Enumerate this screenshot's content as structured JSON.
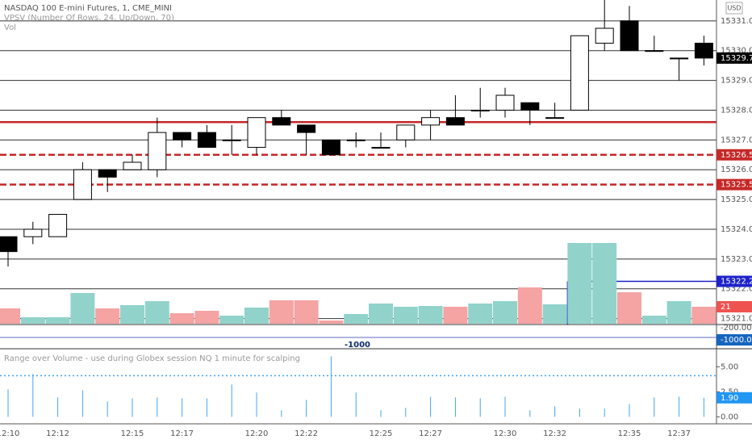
{
  "header": {
    "symbol": "NASDAQ 100 E-mini Futures, 1, CME_MINI",
    "indicator": "VPSV (Number Of Rows, 24, Up/Down, 70)",
    "currency": "USD"
  },
  "bottom_scale": {
    "labels": [
      "-200.00",
      "-1000.00"
    ],
    "marker": "-1000"
  },
  "chart_data": [
    {
      "type": "candlestick",
      "categories": [
        "12:10",
        null,
        "12:12",
        null,
        null,
        "12:15",
        null,
        "12:17",
        null,
        null,
        "12:20",
        null,
        "12:22",
        null,
        null,
        "12:25",
        null,
        "12:27",
        null,
        null,
        "12:30",
        null,
        "12:32",
        null,
        null,
        "12:35",
        null,
        "12:37",
        null
      ],
      "open": [
        15323.75,
        15323.75,
        15323.75,
        15325.0,
        15326.0,
        15326.0,
        15326.0,
        15327.25,
        15327.25,
        15327.0,
        15326.75,
        15327.75,
        15327.5,
        15327.0,
        15327.0,
        15326.75,
        15327.0,
        15327.5,
        15327.75,
        15328.0,
        15328.0,
        15328.25,
        15327.75,
        15328.0,
        15330.25,
        15331.0,
        15330.0,
        15329.75,
        15330.25
      ],
      "high": [
        15323.75,
        15324.25,
        15324.5,
        15326.25,
        15326.0,
        15326.5,
        15327.75,
        15327.25,
        15327.5,
        15327.5,
        15327.75,
        15328.0,
        15327.5,
        15327.0,
        15327.25,
        15327.25,
        15327.5,
        15328.0,
        15328.5,
        15328.75,
        15328.75,
        15328.25,
        15328.25,
        15330.5,
        15331.75,
        15331.5,
        15330.5,
        15329.75,
        15330.5
      ],
      "low": [
        15322.75,
        15323.5,
        15323.75,
        15325.0,
        15325.25,
        15326.0,
        15325.75,
        15326.75,
        15326.75,
        15326.5,
        15326.5,
        15327.5,
        15326.5,
        15326.5,
        15326.75,
        15326.75,
        15326.75,
        15327.0,
        15327.5,
        15327.75,
        15327.75,
        15327.5,
        15327.75,
        15328.0,
        15330.0,
        15330.0,
        15330.0,
        15329.0,
        15329.5
      ],
      "close": [
        15323.25,
        15324.0,
        15324.5,
        15326.0,
        15325.75,
        15326.25,
        15327.25,
        15327.0,
        15326.75,
        15327.0,
        15327.75,
        15327.5,
        15327.25,
        15326.5,
        15327.0,
        15326.75,
        15327.5,
        15327.75,
        15327.5,
        15328.0,
        15328.5,
        15328.0,
        15327.75,
        15330.5,
        15330.75,
        15330.0,
        15330.0,
        15329.75,
        15329.75
      ],
      "last_label": "15329.75",
      "ylim": [
        15320.8,
        15331.7
      ],
      "yticks": [
        {
          "value": 15321,
          "label": "15321.00"
        },
        {
          "value": 15322,
          "label": "15322.00"
        },
        {
          "value": 15323,
          "label": "15323.00"
        },
        {
          "value": 15324,
          "label": "15324.00"
        },
        {
          "value": 15325,
          "label": "15325.00"
        },
        {
          "value": 15326,
          "label": "15326.00"
        },
        {
          "value": 15327,
          "label": "15327.00"
        },
        {
          "value": 15328,
          "label": "15328.00"
        },
        {
          "value": 15329,
          "label": "15329.00"
        },
        {
          "value": 15330,
          "label": "15330.00"
        },
        {
          "value": 15331,
          "label": "15331.00"
        }
      ],
      "grid": true,
      "price_lines": [
        {
          "value": 15327.6,
          "color": "#c62828",
          "dashed": false
        },
        {
          "value": 15326.5,
          "label": "15326.50",
          "color": "#c62828",
          "dashed": true
        },
        {
          "value": 15325.5,
          "label": "15325.50",
          "color": "#c62828",
          "dashed": true
        },
        {
          "value": 15322.25,
          "label": "15322.25",
          "color": "#1e22c8",
          "dashed": false
        }
      ]
    },
    {
      "type": "volume",
      "title": "Vol",
      "values": [
        19,
        8,
        8,
        38,
        19,
        23,
        28,
        13,
        16,
        10,
        20,
        29,
        29,
        4,
        12,
        25,
        21,
        22,
        21,
        25,
        28,
        45,
        24,
        100,
        100,
        39,
        10,
        28,
        21
      ],
      "up_color": "#91d3cb",
      "down_color": "#f5a3a3",
      "ylim": [
        0,
        100
      ]
    },
    {
      "type": "spikes",
      "title": "Range over Volume - use during Globex session NQ 1 minute for scalping",
      "values": [
        2.74,
        4.27,
        1.94,
        2.66,
        1.53,
        1.85,
        1.94,
        1.85,
        1.85,
        3.23,
        2.42,
        0.65,
        1.69,
        6.05,
        2.42,
        0.65,
        0.89,
        2.0,
        1.94,
        1.85,
        2.0,
        0.65,
        1.05,
        0.81,
        0.81,
        1.29,
        1.94,
        2.02,
        1.9
      ],
      "last_label": "1.90",
      "threshold": 4.11,
      "color": "#42a5f5",
      "ylim": [
        -0.7,
        6.8
      ],
      "yticks": [
        {
          "value": 0,
          "label": "0.00"
        },
        {
          "value": 2.5,
          "label": "2.50"
        },
        {
          "value": 5,
          "label": "5.00"
        }
      ]
    }
  ]
}
